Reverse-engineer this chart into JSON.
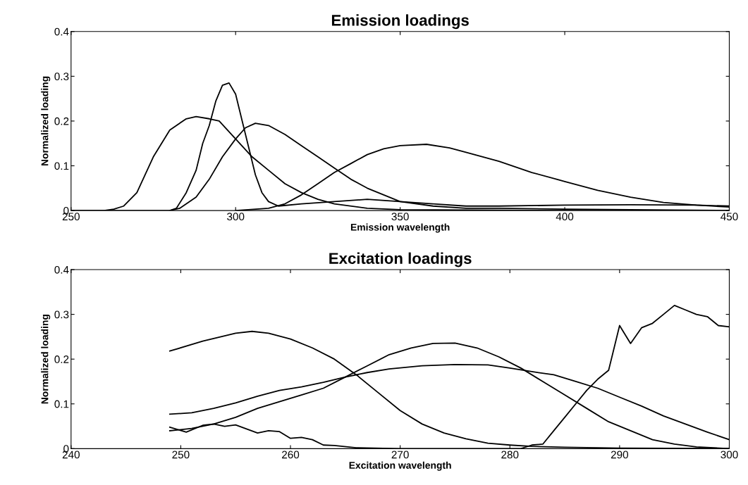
{
  "chart_data": [
    {
      "type": "line",
      "title": "Emission loadings",
      "xlabel": "Emission wavelength",
      "ylabel": "Normalized loading",
      "xlim": [
        250,
        450
      ],
      "xticks": [
        250,
        300,
        350,
        400,
        450
      ],
      "ylim": [
        0,
        0.4
      ],
      "yticks": [
        0,
        0.1,
        0.2,
        0.3,
        0.4
      ],
      "series": [
        {
          "color": "#000000",
          "x": [
            250,
            260,
            263,
            266,
            270,
            275,
            280,
            285,
            288,
            292,
            295,
            300,
            305,
            310,
            315,
            320,
            325,
            330,
            340,
            350,
            400,
            450
          ],
          "values": [
            0,
            0,
            0.003,
            0.01,
            0.04,
            0.12,
            0.18,
            0.205,
            0.21,
            0.205,
            0.2,
            0.16,
            0.12,
            0.09,
            0.06,
            0.04,
            0.025,
            0.015,
            0.005,
            0.002,
            0,
            0
          ]
        },
        {
          "color": "#000000",
          "x": [
            250,
            280,
            282,
            285,
            288,
            290,
            292,
            294,
            296,
            298,
            300,
            302,
            304,
            306,
            308,
            310,
            313,
            320,
            330,
            340,
            350,
            360,
            370,
            380,
            400,
            420,
            440,
            450
          ],
          "values": [
            0,
            0,
            0.005,
            0.04,
            0.09,
            0.15,
            0.19,
            0.245,
            0.28,
            0.285,
            0.26,
            0.2,
            0.14,
            0.08,
            0.04,
            0.02,
            0.01,
            0.015,
            0.02,
            0.025,
            0.02,
            0.015,
            0.01,
            0.01,
            0.012,
            0.013,
            0.012,
            0.01
          ]
        },
        {
          "color": "#000000",
          "x": [
            280,
            283,
            288,
            292,
            296,
            300,
            303,
            306,
            310,
            315,
            320,
            325,
            330,
            335,
            340,
            345,
            350,
            360,
            370,
            380,
            400,
            450
          ],
          "values": [
            0,
            0.005,
            0.03,
            0.07,
            0.12,
            0.16,
            0.185,
            0.195,
            0.19,
            0.17,
            0.145,
            0.12,
            0.095,
            0.07,
            0.05,
            0.035,
            0.02,
            0.01,
            0.005,
            0.005,
            0.003,
            0
          ]
        },
        {
          "color": "#000000",
          "x": [
            300,
            310,
            315,
            320,
            325,
            330,
            335,
            340,
            345,
            350,
            358,
            365,
            370,
            380,
            390,
            400,
            410,
            420,
            430,
            440,
            450
          ],
          "values": [
            0,
            0.005,
            0.015,
            0.035,
            0.06,
            0.085,
            0.105,
            0.125,
            0.138,
            0.145,
            0.148,
            0.14,
            0.13,
            0.11,
            0.085,
            0.065,
            0.045,
            0.03,
            0.018,
            0.012,
            0.008
          ]
        }
      ]
    },
    {
      "type": "line",
      "title": "Excitation loadings",
      "xlabel": "Excitation wavelength",
      "ylabel": "Normalized loading",
      "xlim": [
        240,
        300
      ],
      "xticks": [
        240,
        250,
        260,
        270,
        280,
        290,
        300
      ],
      "ylim": [
        0,
        0.4
      ],
      "yticks": [
        0,
        0.1,
        0.2,
        0.3,
        0.4
      ],
      "series": [
        {
          "color": "#000000",
          "x": [
            249,
            252,
            255,
            256.5,
            258,
            260,
            262,
            264,
            266,
            268,
            270,
            272,
            274,
            276,
            278,
            280,
            282,
            285,
            290,
            300
          ],
          "values": [
            0.218,
            0.24,
            0.258,
            0.262,
            0.258,
            0.245,
            0.225,
            0.2,
            0.165,
            0.125,
            0.085,
            0.055,
            0.035,
            0.022,
            0.012,
            0.008,
            0.005,
            0.003,
            0.001,
            0
          ]
        },
        {
          "color": "#000000",
          "x": [
            249,
            251,
            253,
            255,
            257,
            259,
            261,
            263,
            265,
            267,
            269,
            271,
            273,
            275,
            277,
            279,
            281,
            283,
            285,
            287,
            289,
            291,
            293,
            295,
            297,
            300
          ],
          "values": [
            0.04,
            0.045,
            0.055,
            0.07,
            0.09,
            0.105,
            0.12,
            0.135,
            0.16,
            0.185,
            0.21,
            0.225,
            0.235,
            0.236,
            0.225,
            0.205,
            0.18,
            0.15,
            0.12,
            0.09,
            0.06,
            0.04,
            0.02,
            0.01,
            0.004,
            0
          ]
        },
        {
          "color": "#000000",
          "x": [
            249,
            251,
            253,
            255,
            257,
            259,
            261,
            263,
            265,
            267,
            269,
            272,
            275,
            278,
            280,
            282,
            284,
            286,
            288,
            290,
            292,
            294,
            296,
            298,
            300
          ],
          "values": [
            0.077,
            0.08,
            0.09,
            0.102,
            0.117,
            0.13,
            0.138,
            0.148,
            0.16,
            0.17,
            0.178,
            0.185,
            0.188,
            0.187,
            0.18,
            0.172,
            0.165,
            0.15,
            0.135,
            0.115,
            0.095,
            0.073,
            0.055,
            0.037,
            0.02
          ]
        },
        {
          "color": "#000000",
          "x": [
            249,
            250.5,
            252,
            253,
            254,
            255,
            257,
            258,
            259,
            260,
            261,
            262,
            263,
            264,
            266,
            270,
            281,
            282,
            283,
            284,
            285,
            286,
            287,
            288,
            289,
            290,
            291,
            292,
            293,
            294,
            295,
            296,
            297,
            298,
            299,
            300
          ],
          "values": [
            0.048,
            0.037,
            0.052,
            0.055,
            0.05,
            0.053,
            0.035,
            0.04,
            0.038,
            0.023,
            0.025,
            0.02,
            0.008,
            0.007,
            0.002,
            0,
            0,
            0.008,
            0.01,
            0.04,
            0.07,
            0.1,
            0.13,
            0.155,
            0.175,
            0.275,
            0.235,
            0.27,
            0.28,
            0.3,
            0.32,
            0.31,
            0.3,
            0.295,
            0.275,
            0.272
          ]
        }
      ]
    }
  ]
}
